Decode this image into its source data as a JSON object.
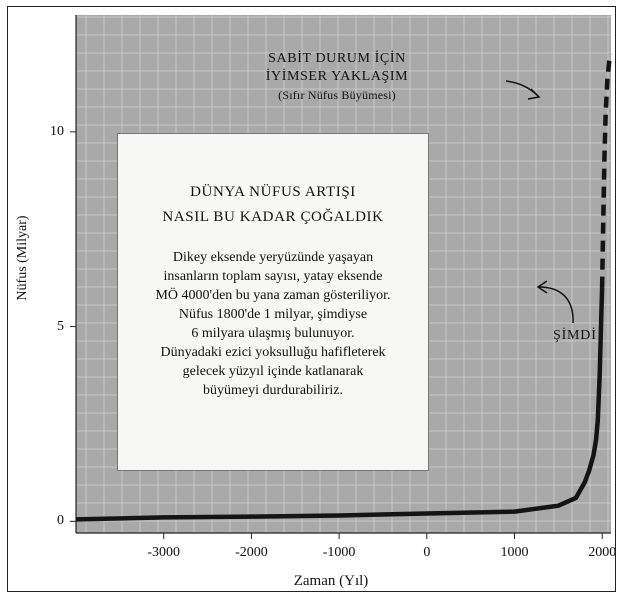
{
  "chart_data": {
    "type": "line",
    "xlabel": "Zaman (Yıl)",
    "ylabel": "Nüfus (Milyar)",
    "xlim": [
      -4000,
      2100
    ],
    "ylim": [
      -0.3,
      13.0
    ],
    "xticks": [
      -3000,
      -2000,
      -1000,
      0,
      1000,
      2000
    ],
    "yticks": [
      0,
      5,
      10
    ],
    "grid": true,
    "series": [
      {
        "style": "solid",
        "x": [
          -4000,
          -3000,
          -2000,
          -1000,
          0,
          1000,
          1500,
          1700,
          1800,
          1850,
          1900,
          1930,
          1950,
          1970,
          1998
        ],
        "y": [
          0.05,
          0.1,
          0.12,
          0.15,
          0.2,
          0.25,
          0.4,
          0.6,
          1.0,
          1.3,
          1.7,
          2.1,
          2.6,
          3.7,
          6.0
        ]
      },
      {
        "style": "dashed",
        "x": [
          1998,
          2010,
          2025,
          2040,
          2060,
          2080,
          2100
        ],
        "y": [
          6.0,
          7.5,
          9.3,
          10.5,
          11.4,
          11.8,
          12.0
        ]
      }
    ],
    "box": {
      "title_lines": [
        "DÜNYA NÜFUS ARTIŞI",
        "NASIL BU KADAR ÇOĞALDIK"
      ],
      "body_lines": [
        "Dikey eksende yeryüzünde yaşayan",
        "insanların toplam sayısı, yatay eksende",
        "MÖ 4000'den bu yana zaman gösteriliyor.",
        "Nüfus 1800'de 1 milyar, şimdiyse",
        "6 milyara ulaşmış bulunuyor.",
        "Dünyadaki ezici yoksulluğu hafifleterek",
        "gelecek yüzyıl içinde katlanarak",
        "büyümeyi durdurabiliriz."
      ]
    },
    "annotations": {
      "optimistic": {
        "lines": [
          "SABİT DURUM İÇİN",
          "İYİMSER YAKLAŞIM"
        ],
        "sub": "(Sıfır Nüfus Büyümesi)"
      },
      "now": "ŞİMDİ"
    }
  },
  "colors": {
    "plot_background": "#a9a9a9",
    "grid": "#c8c8c8",
    "curve": "#141414",
    "box_background": "#f7f7f5"
  }
}
